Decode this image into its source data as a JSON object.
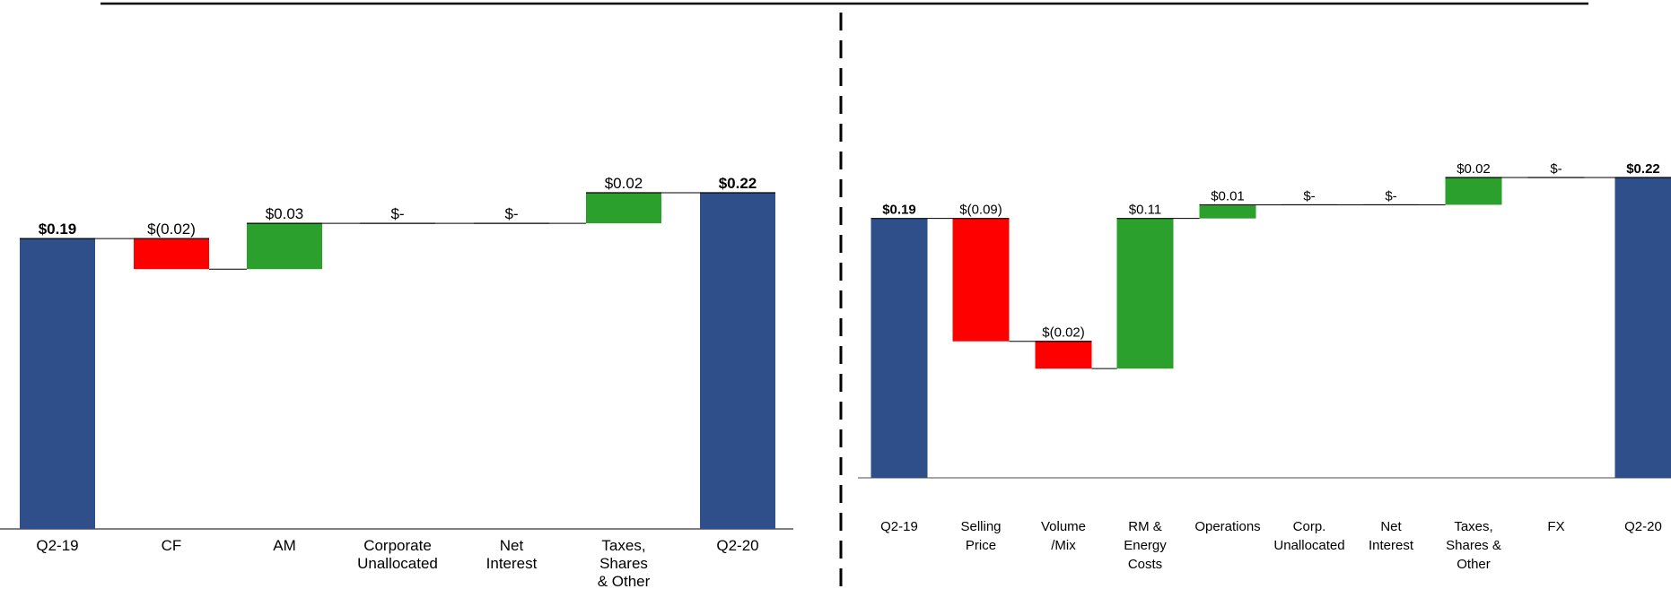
{
  "chart_data": [
    {
      "type": "bar",
      "subtype": "waterfall",
      "title": "",
      "xlabel": "",
      "ylabel": "",
      "categories": [
        "Q2-19",
        "CF",
        "AM",
        "Corporate Unallocated",
        "Net Interest",
        "Taxes, Shares & Other",
        "Q2-20"
      ],
      "category_lines": [
        [
          "Q2-19"
        ],
        [
          "CF"
        ],
        [
          "AM"
        ],
        [
          "Corporate",
          "Unallocated"
        ],
        [
          "Net",
          "Interest"
        ],
        [
          "Taxes,",
          "Shares",
          "& Other"
        ],
        [
          "Q2-20"
        ]
      ],
      "kinds": [
        "total",
        "delta",
        "delta",
        "delta",
        "delta",
        "delta",
        "total"
      ],
      "values": [
        0.19,
        -0.02,
        0.03,
        0.0,
        0.0,
        0.02,
        0.22
      ],
      "value_labels": [
        "$0.19",
        "$(0.02)",
        "$0.03",
        "$-",
        "$-",
        "$0.02",
        "$0.22"
      ],
      "ylim": [
        0,
        0.22
      ],
      "grid": false,
      "colors": {
        "total": "#2e4f8a",
        "increase": "#2ca02c",
        "decrease": "#ff0000"
      }
    },
    {
      "type": "bar",
      "subtype": "waterfall",
      "title": "",
      "xlabel": "",
      "ylabel": "",
      "categories": [
        "Q2-19",
        "Selling Price",
        "Volume /Mix",
        "RM & Energy Costs",
        "Operations",
        "Corp. Unallocated",
        "Net Interest",
        "Taxes, Shares & Other",
        "FX",
        "Q2-20"
      ],
      "category_lines": [
        [
          "Q2-19"
        ],
        [
          "Selling",
          "Price"
        ],
        [
          "Volume",
          "/Mix"
        ],
        [
          "RM &",
          "Energy",
          "Costs"
        ],
        [
          "Operations"
        ],
        [
          "Corp.",
          "Unallocated"
        ],
        [
          "Net",
          "Interest"
        ],
        [
          "Taxes,",
          "Shares &",
          "Other"
        ],
        [
          "FX"
        ],
        [
          "Q2-20"
        ]
      ],
      "kinds": [
        "total",
        "delta",
        "delta",
        "delta",
        "delta",
        "delta",
        "delta",
        "delta",
        "delta",
        "total"
      ],
      "values": [
        0.19,
        -0.09,
        -0.02,
        0.11,
        0.01,
        0.0,
        0.0,
        0.02,
        0.0,
        0.22
      ],
      "value_labels": [
        "$0.19",
        "$(0.09)",
        "$(0.02)",
        "$0.11",
        "$0.01",
        "$-",
        "$-",
        "$0.02",
        "$-",
        "$0.22"
      ],
      "ylim": [
        0,
        0.22
      ],
      "grid": false,
      "colors": {
        "total": "#2e4f8a",
        "increase": "#2ca02c",
        "decrease": "#ff0000"
      }
    }
  ]
}
